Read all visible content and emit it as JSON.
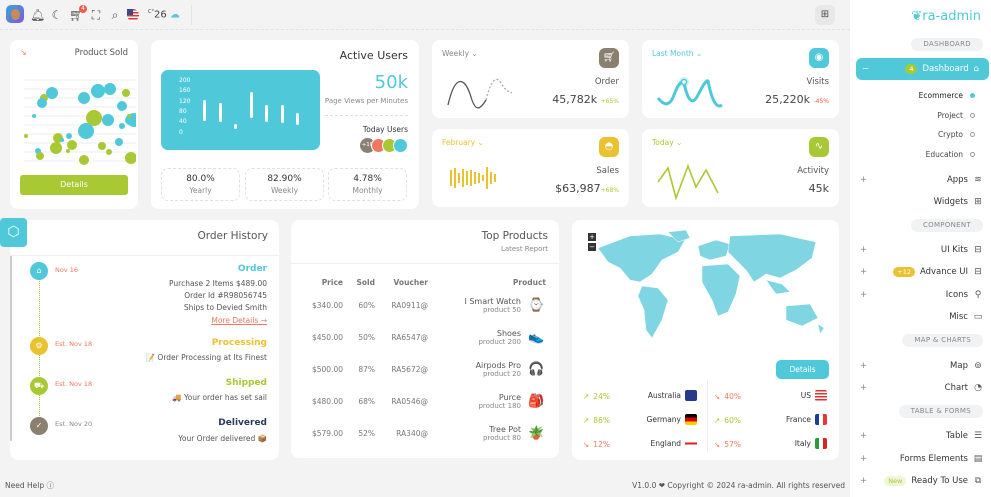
{
  "topbar": {
    "weather_unit": "C°",
    "temperature": "26",
    "cart_count": "4"
  },
  "sidebar": {
    "logo": "ra-admin",
    "sections": [
      "DASHBOARD",
      "COMPONENT",
      "MAP & CHARTS",
      "TABLE & FORMS"
    ],
    "dashboard": {
      "label": "Dashboard",
      "badge": "4"
    },
    "sub_items": [
      "Ecommerce",
      "Project",
      "Crypto",
      "Education"
    ],
    "items": [
      {
        "label": "Apps",
        "icon": "stack-icon"
      },
      {
        "label": "Widgets",
        "icon": "grid-icon"
      },
      {
        "label": "UI Kits",
        "icon": "briefcase-icon"
      },
      {
        "label": "Advance UI",
        "icon": "briefcase-icon",
        "badge": "+12"
      },
      {
        "label": "Icons",
        "icon": "shapes-icon"
      },
      {
        "label": "Misc",
        "icon": "devices-icon"
      },
      {
        "label": "Map",
        "icon": "map-pin-icon"
      },
      {
        "label": "Chart",
        "icon": "pie-chart-icon"
      },
      {
        "label": "Table",
        "icon": "table-icon"
      },
      {
        "label": "Forms Elements",
        "icon": "form-icon"
      },
      {
        "label": "Ready To Use",
        "icon": "package-icon",
        "badge": "New"
      }
    ]
  },
  "product_sold": {
    "title": "Product Sold",
    "button": "Details"
  },
  "active_users": {
    "title": "Active Users",
    "value": "50k",
    "subtitle": "Page Views per Minutes",
    "today_label": "Today Users",
    "extra_users": "+10",
    "y_ticks": [
      "200",
      "160",
      "120",
      "80",
      "40",
      "0"
    ],
    "bars": [
      125,
      112,
      30,
      155,
      105,
      102,
      72
    ],
    "stats": [
      {
        "value": "80.0%",
        "label": "Yearly"
      },
      {
        "value": "82.90%",
        "label": "Weekly"
      },
      {
        "value": "4.78%",
        "label": "Monthly"
      }
    ]
  },
  "widgets": {
    "order": {
      "period": "Weekly",
      "label": "Order",
      "value": "45,782k",
      "change": "+65%",
      "color": "#8a8070"
    },
    "visits": {
      "period": "Last Month",
      "label": "Visits",
      "value": "25,220k",
      "change": "-45%",
      "color": "#4fc9da"
    },
    "sales": {
      "period": "February",
      "label": "Sales",
      "value": "$63,987",
      "change": "+68%",
      "color": "#eac12e"
    },
    "activity": {
      "period": "Today",
      "label": "Activity",
      "value": "45k",
      "color": "#a8c934"
    }
  },
  "order_history": {
    "title": "Order History",
    "steps": [
      {
        "date": "Nov 16",
        "title": "Order",
        "lines": [
          "Purchase 2 Items $489.00",
          "Order Id #R98056745",
          "Ships to Devied Smith"
        ],
        "link": "More Details →",
        "color": "#4fc9da"
      },
      {
        "date": "Est. Nov 18",
        "title": "Processing",
        "lines": [
          "📝 Order Processing at Its Finest"
        ],
        "color": "#eac12e"
      },
      {
        "date": "Est. Nov 18",
        "title": "Shipped",
        "lines": [
          "🚚 Your order has set sail"
        ],
        "color": "#a8c934"
      },
      {
        "date": "Est. Nov 20",
        "title": "Delivered",
        "lines": [
          "Your Order delivered 📦"
        ],
        "color": "#8a8070"
      }
    ]
  },
  "top_products": {
    "title": "Top Products",
    "subtitle": "Latest Report",
    "columns": [
      "Price",
      "Sold",
      "Voucher",
      "Product"
    ],
    "rows": [
      {
        "price": "$340.00",
        "sold": "60%",
        "voucher": "RA0911@",
        "name": "I Smart Watch",
        "sub": "product 50",
        "icon": "⌚"
      },
      {
        "price": "$450.00",
        "sold": "50%",
        "voucher": "RA6547@",
        "name": "Shoes",
        "sub": "product 200",
        "icon": "👟"
      },
      {
        "price": "$500.00",
        "sold": "87%",
        "voucher": "RA5672@",
        "name": "Airpods Pro",
        "sub": "product 20",
        "icon": "🎧"
      },
      {
        "price": "$480.00",
        "sold": "68%",
        "voucher": "RA0546@",
        "name": "Purce",
        "sub": "product 180",
        "icon": "🎒"
      },
      {
        "price": "$579.00",
        "sold": "52%",
        "voucher": "RA340@",
        "name": "Tree Pot",
        "sub": "product 80",
        "icon": "🪴"
      }
    ]
  },
  "map_card": {
    "button": "Details",
    "zoom_in": "+",
    "zoom_out": "−",
    "countries": [
      {
        "name": "Australia",
        "change": "24%",
        "up": true
      },
      {
        "name": "US",
        "change": "40%",
        "up": false
      },
      {
        "name": "Germany",
        "change": "86%",
        "up": true
      },
      {
        "name": "France",
        "change": "60%",
        "up": true
      },
      {
        "name": "England",
        "change": "12%",
        "up": false
      },
      {
        "name": "Italy",
        "change": "57%",
        "up": false
      }
    ]
  },
  "footer": {
    "help": "Need Help",
    "copyright": "V1.0.0 ❤ Copyright © 2024 ra-admin. All rights reserved"
  }
}
